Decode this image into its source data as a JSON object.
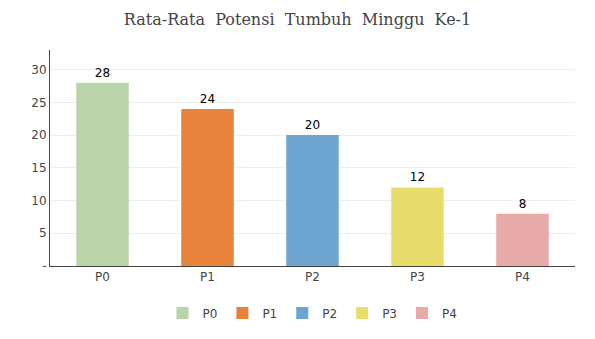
{
  "chart_data": {
    "type": "bar",
    "title": "Rata-Rata  Potensi  Tumbuh  Minggu  Ke-1",
    "categories": [
      "P0",
      "P1",
      "P2",
      "P3",
      "P4"
    ],
    "values": [
      28,
      24,
      20,
      12,
      8
    ],
    "colors": [
      "#b8d4a8",
      "#e8823a",
      "#6ea4d0",
      "#e8dd6a",
      "#e8aaa8"
    ],
    "ylim": [
      0,
      33
    ],
    "yticks": [
      {
        "value": 0,
        "label": "-"
      },
      5,
      10,
      15,
      20,
      25,
      30
    ],
    "grid": true,
    "data_labels": true,
    "legend": "bottom"
  }
}
